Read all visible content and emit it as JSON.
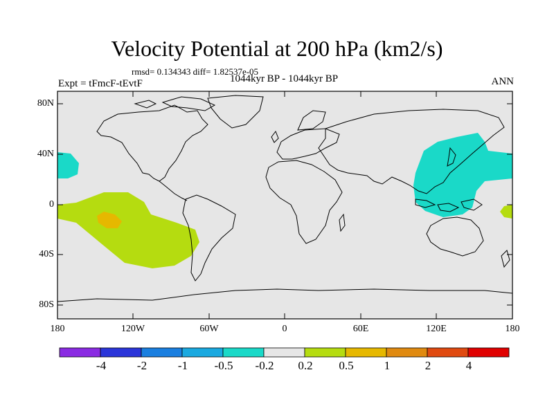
{
  "title": "Velocity Potential at 200 hPa (km2/s)",
  "stats": "rmsd= 0.134343  diff= 1.82537e-05",
  "period": "1044kyr BP - 1044kyr BP",
  "experiment": "Expt = tFmcF-tEvtF",
  "season": "ANN",
  "y_axis": {
    "ticks": [
      "80N",
      "40N",
      "0",
      "40S",
      "80S"
    ]
  },
  "x_axis": {
    "ticks": [
      "180",
      "120W",
      "60W",
      "0",
      "60E",
      "120E",
      "180"
    ]
  },
  "colorbar": {
    "colors": [
      "#8a2be2",
      "#2b35d9",
      "#1a7fe0",
      "#1aa9e0",
      "#1ad9c8",
      "#e6e6e6",
      "#b5dc10",
      "#e6b800",
      "#e08a10",
      "#e04a10",
      "#e00000"
    ],
    "labels": [
      "-4",
      "-2",
      "-1",
      "-0.5",
      "-0.2",
      "0.2",
      "0.5",
      "1",
      "2",
      "4"
    ]
  },
  "map": {
    "background_color": "#e6e6e6",
    "regions": [
      {
        "name": "negative-anomaly-west-pacific-asia",
        "level": "-0.5 to -0.2",
        "color": "#1ad9c8"
      },
      {
        "name": "negative-anomaly-north-pacific-east",
        "level": "-0.5 to -0.2",
        "color": "#1ad9c8"
      },
      {
        "name": "positive-anomaly-south-pacific",
        "level": "0.2 to 0.5",
        "color": "#b5dc10"
      },
      {
        "name": "positive-anomaly-south-pacific-core",
        "level": "0.5 to 1",
        "color": "#e6b800"
      },
      {
        "name": "positive-anomaly-dateline-east",
        "level": "0.2 to 0.5",
        "color": "#b5dc10"
      }
    ]
  }
}
